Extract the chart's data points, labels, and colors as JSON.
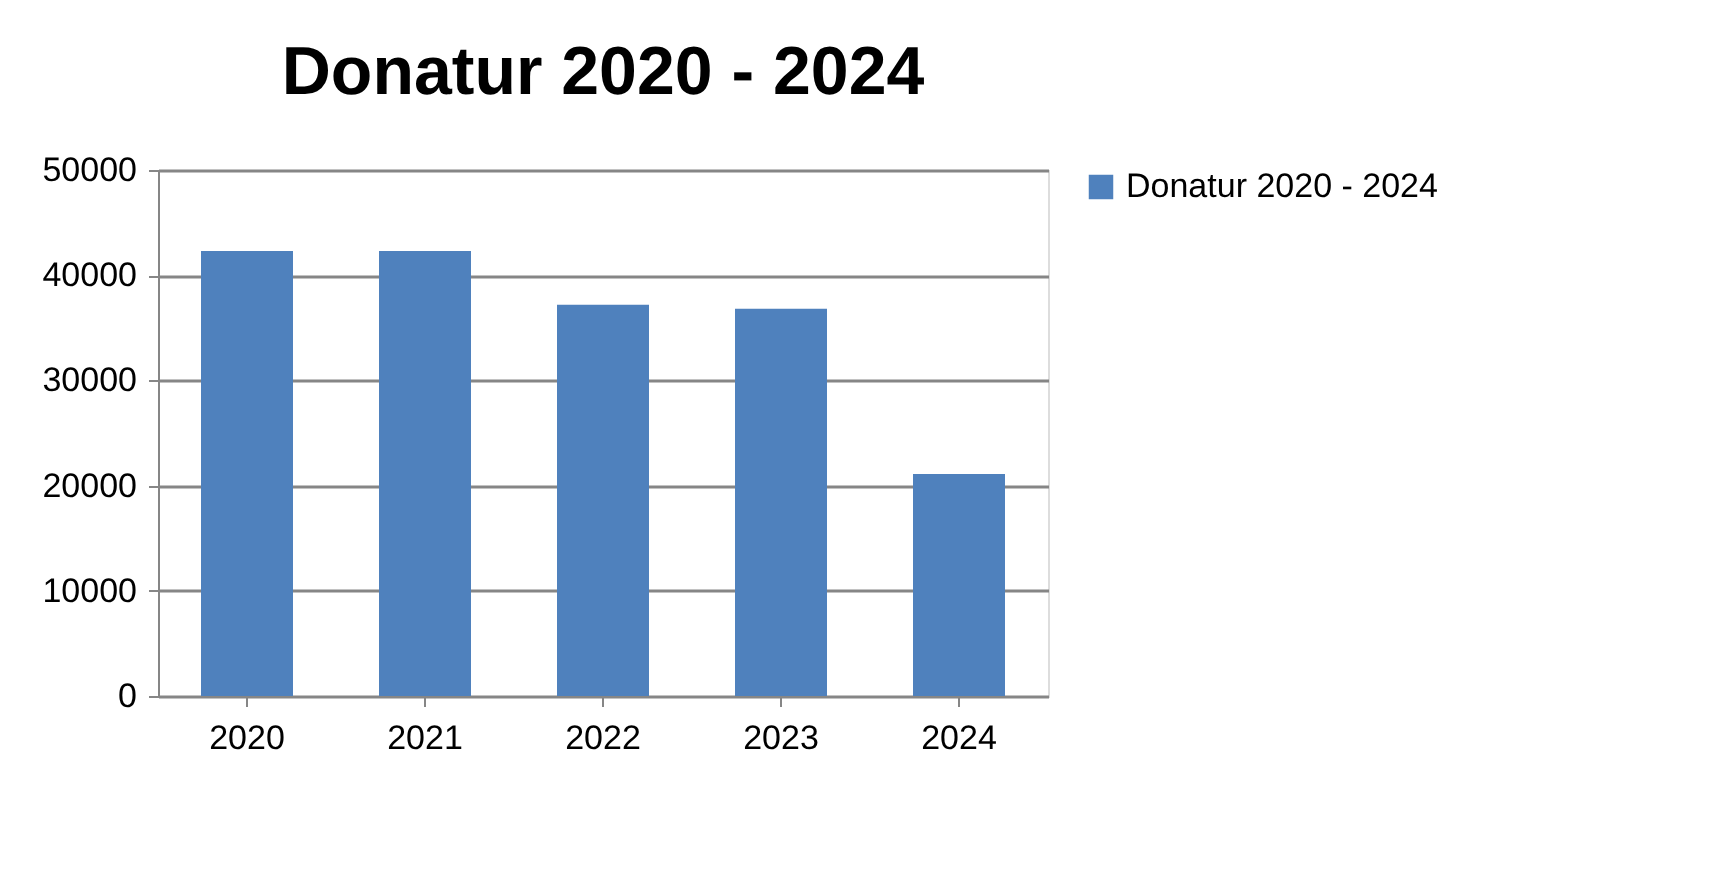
{
  "chart_data": {
    "type": "bar",
    "title": "Donatur 2020 - 2024",
    "categories": [
      "2020",
      "2021",
      "2022",
      "2023",
      "2024"
    ],
    "series": [
      {
        "name": "Donatur 2020 - 2024",
        "color": "#4f81bd",
        "values": [
          42300,
          42300,
          37200,
          36800,
          21100
        ]
      }
    ],
    "ylim": [
      0,
      50000
    ],
    "yticks": [
      0,
      10000,
      20000,
      30000,
      40000,
      50000
    ],
    "grid": "y",
    "legend": "right"
  }
}
